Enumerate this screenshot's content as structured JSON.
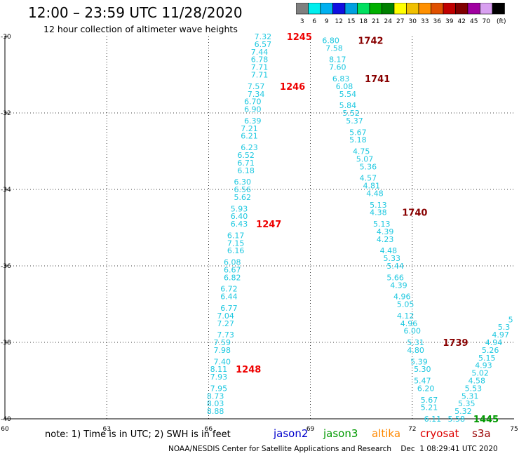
{
  "header": {
    "title": "12:00 – 23:59 UTC 11/28/2020",
    "subtitle": "12 hour collection of altimeter wave heights"
  },
  "colorbar": {
    "labels": [
      "3",
      "6",
      "9",
      "12",
      "15",
      "18",
      "21",
      "24",
      "27",
      "30",
      "33",
      "36",
      "39",
      "42",
      "45",
      "70",
      "(ft)"
    ],
    "colors": [
      "#7f7f7f",
      "#00eeee",
      "#00b0f0",
      "#1010e0",
      "#00a0e0",
      "#00e060",
      "#00b000",
      "#008000",
      "#ffff00",
      "#f0c000",
      "#ff9000",
      "#e05000",
      "#c00000",
      "#800000",
      "#a000a0",
      "#d8a0f0",
      "#000000"
    ]
  },
  "footer": {
    "note": "note:  1) Time is in UTC;  2) SWH is in feet",
    "satellites": [
      {
        "name": "jason2",
        "color": "#0000cc"
      },
      {
        "name": "jason3",
        "color": "#009900"
      },
      {
        "name": "altika",
        "color": "#ff8800"
      },
      {
        "name": "cryosat",
        "color": "#dd0000"
      },
      {
        "name": "s3a",
        "color": "#990000"
      }
    ],
    "credit": "NOAA/NESDIS Center for Satellite Applications and Research    Dec  1 08:29:41 UTC 2020"
  },
  "chart_data": {
    "type": "scatter",
    "xlim": [
      60,
      75
    ],
    "ylim": [
      -40,
      -30
    ],
    "xticks": [
      "60",
      "63",
      "66",
      "69",
      "72",
      "75"
    ],
    "yticks": [
      "-30",
      "-32",
      "-34",
      "-36",
      "-38",
      "-40"
    ],
    "grid": true,
    "tracks": [
      {
        "points": [
          {
            "x": 67.6,
            "y": -30.0,
            "v": "7.32"
          },
          {
            "x": 67.6,
            "y": -30.2,
            "v": "6.57"
          },
          {
            "x": 67.5,
            "y": -30.4,
            "v": "7.44"
          },
          {
            "x": 67.5,
            "y": -30.6,
            "v": "6.78"
          },
          {
            "x": 67.5,
            "y": -30.8,
            "v": "7.71"
          },
          {
            "x": 67.5,
            "y": -31.0,
            "v": "7.71"
          },
          {
            "x": 67.4,
            "y": -31.3,
            "v": "7.57"
          },
          {
            "x": 67.4,
            "y": -31.5,
            "v": "7.34"
          },
          {
            "x": 67.3,
            "y": -31.7,
            "v": "6.70"
          },
          {
            "x": 67.3,
            "y": -31.9,
            "v": "6.90"
          },
          {
            "x": 67.3,
            "y": -32.2,
            "v": "6.39"
          },
          {
            "x": 67.2,
            "y": -32.4,
            "v": "7.21"
          },
          {
            "x": 67.2,
            "y": -32.6,
            "v": "6.21"
          },
          {
            "x": 67.2,
            "y": -32.9,
            "v": "6.23"
          },
          {
            "x": 67.1,
            "y": -33.1,
            "v": "6.52"
          },
          {
            "x": 67.1,
            "y": -33.3,
            "v": "6.71"
          },
          {
            "x": 67.1,
            "y": -33.5,
            "v": "6.18"
          },
          {
            "x": 67.0,
            "y": -33.8,
            "v": "6.30"
          },
          {
            "x": 67.0,
            "y": -34.0,
            "v": "6.56"
          },
          {
            "x": 67.0,
            "y": -34.2,
            "v": "5.62"
          },
          {
            "x": 66.9,
            "y": -34.5,
            "v": "5.93"
          },
          {
            "x": 66.9,
            "y": -34.7,
            "v": "6.40"
          },
          {
            "x": 66.9,
            "y": -34.9,
            "v": "6.43"
          },
          {
            "x": 66.8,
            "y": -35.2,
            "v": "6.17"
          },
          {
            "x": 66.8,
            "y": -35.4,
            "v": "7.15"
          },
          {
            "x": 66.8,
            "y": -35.6,
            "v": "6.16"
          },
          {
            "x": 66.7,
            "y": -35.9,
            "v": "6.08"
          },
          {
            "x": 66.7,
            "y": -36.1,
            "v": "6.67"
          },
          {
            "x": 66.7,
            "y": -36.3,
            "v": "6.82"
          },
          {
            "x": 66.6,
            "y": -36.6,
            "v": "6.72"
          },
          {
            "x": 66.6,
            "y": -36.8,
            "v": "6.44"
          },
          {
            "x": 66.6,
            "y": -37.1,
            "v": "6.77"
          },
          {
            "x": 66.5,
            "y": -37.3,
            "v": "7.04"
          },
          {
            "x": 66.5,
            "y": -37.5,
            "v": "7.27"
          },
          {
            "x": 66.5,
            "y": -37.8,
            "v": "7.73"
          },
          {
            "x": 66.4,
            "y": -38.0,
            "v": "7.59"
          },
          {
            "x": 66.4,
            "y": -38.2,
            "v": "7.98"
          },
          {
            "x": 66.4,
            "y": -38.5,
            "v": "7.40"
          },
          {
            "x": 66.3,
            "y": -38.7,
            "v": "8.11"
          },
          {
            "x": 66.3,
            "y": -38.9,
            "v": "7.93"
          },
          {
            "x": 66.3,
            "y": -39.2,
            "v": "7.95"
          },
          {
            "x": 66.2,
            "y": -39.4,
            "v": "8.73"
          },
          {
            "x": 66.2,
            "y": -39.6,
            "v": "8.03"
          },
          {
            "x": 66.2,
            "y": -39.8,
            "v": "8.88"
          }
        ],
        "passes": [
          {
            "x": 68.3,
            "y": -30.0,
            "label": "1245"
          },
          {
            "x": 68.1,
            "y": -31.3,
            "label": "1246"
          },
          {
            "x": 67.4,
            "y": -34.9,
            "label": "1247"
          },
          {
            "x": 66.8,
            "y": -38.7,
            "label": "1248"
          }
        ],
        "pass_color": "#ee0000"
      },
      {
        "points": [
          {
            "x": 69.6,
            "y": -30.1,
            "v": "6.80"
          },
          {
            "x": 69.7,
            "y": -30.3,
            "v": "7.58"
          },
          {
            "x": 69.8,
            "y": -30.6,
            "v": "8.17"
          },
          {
            "x": 69.8,
            "y": -30.8,
            "v": "7.60"
          },
          {
            "x": 69.9,
            "y": -31.1,
            "v": "6.83"
          },
          {
            "x": 70.0,
            "y": -31.3,
            "v": "6.08"
          },
          {
            "x": 70.1,
            "y": -31.5,
            "v": "5.54"
          },
          {
            "x": 70.1,
            "y": -31.8,
            "v": "5.84"
          },
          {
            "x": 70.2,
            "y": -32.0,
            "v": "5.52"
          },
          {
            "x": 70.3,
            "y": -32.2,
            "v": "5.37"
          },
          {
            "x": 70.4,
            "y": -32.5,
            "v": "5.67"
          },
          {
            "x": 70.4,
            "y": -32.7,
            "v": "5.18"
          },
          {
            "x": 70.5,
            "y": -33.0,
            "v": "4.75"
          },
          {
            "x": 70.6,
            "y": -33.2,
            "v": "5.07"
          },
          {
            "x": 70.7,
            "y": -33.4,
            "v": "5.36"
          },
          {
            "x": 70.7,
            "y": -33.7,
            "v": "4.57"
          },
          {
            "x": 70.8,
            "y": -33.9,
            "v": "4.81"
          },
          {
            "x": 70.9,
            "y": -34.1,
            "v": "4.48"
          },
          {
            "x": 71.0,
            "y": -34.4,
            "v": "5.13"
          },
          {
            "x": 71.0,
            "y": -34.6,
            "v": "4.38"
          },
          {
            "x": 71.1,
            "y": -34.9,
            "v": "5.13"
          },
          {
            "x": 71.2,
            "y": -35.1,
            "v": "4.39"
          },
          {
            "x": 71.2,
            "y": -35.3,
            "v": "4.23"
          },
          {
            "x": 71.3,
            "y": -35.6,
            "v": "4.48"
          },
          {
            "x": 71.4,
            "y": -35.8,
            "v": "5.33"
          },
          {
            "x": 71.5,
            "y": -36.0,
            "v": "5.44"
          },
          {
            "x": 71.5,
            "y": -36.3,
            "v": "5.66"
          },
          {
            "x": 71.6,
            "y": -36.5,
            "v": "4.39"
          },
          {
            "x": 71.7,
            "y": -36.8,
            "v": "4.96"
          },
          {
            "x": 71.8,
            "y": -37.0,
            "v": "5.05"
          },
          {
            "x": 71.8,
            "y": -37.3,
            "v": "4.12"
          },
          {
            "x": 71.9,
            "y": -37.5,
            "v": "4.96"
          },
          {
            "x": 72.0,
            "y": -37.7,
            "v": "6.00"
          },
          {
            "x": 72.1,
            "y": -38.0,
            "v": "5.31"
          },
          {
            "x": 72.1,
            "y": -38.2,
            "v": "4.80"
          },
          {
            "x": 72.2,
            "y": -38.5,
            "v": "5.39"
          },
          {
            "x": 72.3,
            "y": -38.7,
            "v": "5.30"
          },
          {
            "x": 72.3,
            "y": -39.0,
            "v": "5.47"
          },
          {
            "x": 72.4,
            "y": -39.2,
            "v": "6.20"
          },
          {
            "x": 72.5,
            "y": -39.5,
            "v": "5.67"
          },
          {
            "x": 72.5,
            "y": -39.7,
            "v": "5.21"
          },
          {
            "x": 72.6,
            "y": -40.0,
            "v": "6.11"
          }
        ],
        "passes": [
          {
            "x": 70.4,
            "y": -30.1,
            "label": "1742"
          },
          {
            "x": 70.6,
            "y": -31.1,
            "label": "1741"
          },
          {
            "x": 71.7,
            "y": -34.6,
            "label": "1740"
          },
          {
            "x": 72.9,
            "y": -38.0,
            "label": "1739"
          }
        ],
        "pass_color": "#880000"
      },
      {
        "points": [
          {
            "x": 73.3,
            "y": -40.0,
            "v": "5.58"
          },
          {
            "x": 73.5,
            "y": -39.8,
            "v": "5.32"
          },
          {
            "x": 73.6,
            "y": -39.6,
            "v": "5.35"
          },
          {
            "x": 73.7,
            "y": -39.4,
            "v": "5.31"
          },
          {
            "x": 73.8,
            "y": -39.2,
            "v": "5.53"
          },
          {
            "x": 73.9,
            "y": -39.0,
            "v": "4.58"
          },
          {
            "x": 74.0,
            "y": -38.8,
            "v": "5.02"
          },
          {
            "x": 74.1,
            "y": -38.6,
            "v": "4.93"
          },
          {
            "x": 74.2,
            "y": -38.4,
            "v": "5.15"
          },
          {
            "x": 74.3,
            "y": -38.2,
            "v": "5.26"
          },
          {
            "x": 74.4,
            "y": -38.0,
            "v": "4.94"
          },
          {
            "x": 74.6,
            "y": -37.8,
            "v": "4.97"
          },
          {
            "x": 74.7,
            "y": -37.6,
            "v": "5.3"
          },
          {
            "x": 74.9,
            "y": -37.4,
            "v": "5"
          }
        ],
        "passes": [
          {
            "x": 73.8,
            "y": -40.0,
            "label": "1445"
          }
        ],
        "pass_color": "#009900"
      }
    ]
  }
}
